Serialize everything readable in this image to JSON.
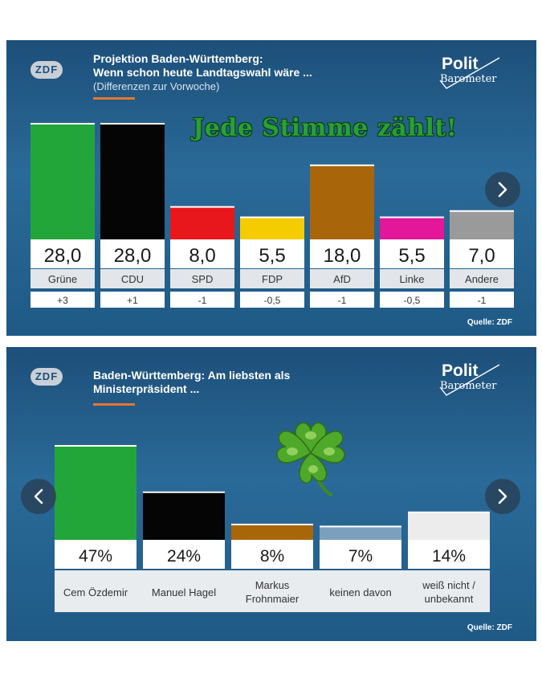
{
  "panel1": {
    "logo": "ZDF",
    "title_line1": "Projektion Baden-Württemberg:",
    "title_line2": "Wenn schon heute Landtagswahl wäre ...",
    "subtitle": "(Differenzen zur Vorwoche)",
    "brand_top": "Polit",
    "brand_bottom": "Barometer",
    "slogan": "Jede Stimme zählt!",
    "source": "Quelle: ZDF",
    "next_icon": "chevron-right-icon"
  },
  "panel2": {
    "logo": "ZDF",
    "title_line1": "Baden-Württemberg: Am liebsten als",
    "title_line2": "Ministerpräsident ...",
    "brand_top": "Polit",
    "brand_bottom": "Barometer",
    "source": "Quelle: ZDF",
    "decoration_icon": "four-leaf-clover-icon",
    "prev_icon": "chevron-left-icon",
    "next_icon": "chevron-right-icon"
  },
  "colors": {
    "accent": "#e7772a",
    "background": "#1f5a86"
  },
  "chart_data": [
    {
      "type": "bar",
      "title": "Projektion Baden-Württemberg: Wenn schon heute Landtagswahl wäre ...",
      "subtitle": "(Differenzen zur Vorwoche)",
      "categories": [
        "Grüne",
        "CDU",
        "SPD",
        "FDP",
        "AfD",
        "Linke",
        "Andere"
      ],
      "values": [
        28.0,
        28.0,
        8.0,
        5.5,
        18.0,
        5.5,
        7.0
      ],
      "value_labels": [
        "28,0",
        "28,0",
        "8,0",
        "5,5",
        "18,0",
        "5,5",
        "7,0"
      ],
      "changes": [
        "+3",
        "+1",
        "-1",
        "-0,5",
        "-1",
        "-0,5",
        "-1"
      ],
      "colors": [
        "#22a63a",
        "#050505",
        "#e8171b",
        "#f5cc00",
        "#a8650a",
        "#e4169a",
        "#9a9a9a"
      ],
      "ylim": [
        0,
        28
      ],
      "grid": false
    },
    {
      "type": "bar",
      "title": "Baden-Württemberg: Am liebsten als Ministerpräsident ...",
      "categories": [
        "Cem Özdemir",
        "Manuel Hagel",
        "Markus Frohnmaier",
        "keinen davon",
        "weiß nicht / unbekannt"
      ],
      "category_lines": [
        [
          "Cem Özdemir"
        ],
        [
          "Manuel Hagel"
        ],
        [
          "Markus",
          "Frohnmaier"
        ],
        [
          "keinen davon"
        ],
        [
          "weiß nicht /",
          "unbekannt"
        ]
      ],
      "values": [
        47,
        24,
        8,
        7,
        14
      ],
      "value_labels": [
        "47%",
        "24%",
        "8%",
        "7%",
        "14%"
      ],
      "colors": [
        "#22a63a",
        "#050505",
        "#a8650a",
        "#7aa0bd",
        "#ececec"
      ],
      "ylim": [
        0,
        47
      ],
      "grid": false
    }
  ]
}
